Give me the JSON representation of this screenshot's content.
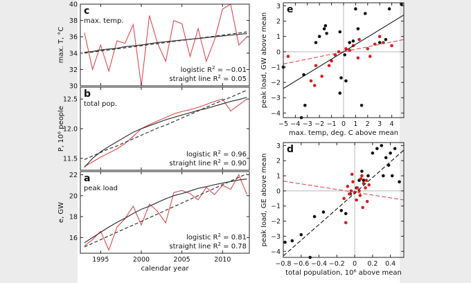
{
  "chart_data": [
    {
      "id": "c",
      "type": "line",
      "label": "c",
      "title": "max. temp.",
      "ylabel": "max. T, °C",
      "ylim": [
        30,
        40
      ],
      "yticks": [
        30,
        32,
        34,
        36,
        38,
        40
      ],
      "xlim": [
        1992.5,
        2013.3
      ],
      "xticks": [
        1995,
        2000,
        2005,
        2010
      ],
      "show_xticklabels": false,
      "x": [
        1993,
        1994,
        1995,
        1996,
        1997,
        1998,
        1999,
        2000,
        2001,
        2002,
        2003,
        2004,
        2005,
        2006,
        2007,
        2008,
        2009,
        2010,
        2011,
        2012,
        2013
      ],
      "series": [
        {
          "name": "observed",
          "color": "#e0474c",
          "style": "solid",
          "values": [
            36.5,
            32.0,
            35.0,
            31.8,
            35.5,
            35.2,
            37.5,
            30.0,
            38.6,
            35.2,
            33.0,
            38.0,
            37.6,
            33.6,
            37.0,
            33.0,
            35.6,
            39.4,
            40.0,
            35.0,
            36.0
          ]
        },
        {
          "name": "logistic",
          "color": "#333333",
          "style": "solid",
          "values": [
            34.1,
            34.2,
            34.4,
            34.5,
            34.6,
            34.8,
            34.9,
            35.0,
            35.15,
            35.3,
            35.4,
            35.5,
            35.6,
            35.7,
            35.8,
            35.9,
            36.0,
            36.1,
            36.2,
            36.3,
            36.4
          ]
        },
        {
          "name": "straight line",
          "color": "#333333",
          "style": "dashed",
          "values": [
            34.0,
            34.13,
            34.26,
            34.39,
            34.52,
            34.65,
            34.78,
            34.91,
            35.04,
            35.17,
            35.3,
            35.43,
            35.56,
            35.69,
            35.82,
            35.95,
            36.08,
            36.21,
            36.34,
            36.47,
            36.6
          ]
        }
      ],
      "stats": [
        {
          "model": "logistic",
          "r2": "−0.01"
        },
        {
          "model": "straight line",
          "r2": "0.05"
        }
      ]
    },
    {
      "id": "b",
      "type": "line",
      "label": "b",
      "title": "total pop.",
      "ylabel": "P, 10^6 people",
      "ylim": [
        11.3,
        12.7
      ],
      "yticks": [
        11.5,
        12.0,
        12.5
      ],
      "xlim": [
        1992.5,
        2013.3
      ],
      "xticks": [
        1995,
        2000,
        2005,
        2010
      ],
      "show_xticklabels": false,
      "x": [
        1993,
        1994,
        1995,
        1996,
        1997,
        1998,
        1999,
        2000,
        2001,
        2002,
        2003,
        2004,
        2005,
        2006,
        2007,
        2008,
        2009,
        2010,
        2011,
        2012,
        2013
      ],
      "series": [
        {
          "name": "observed",
          "color": "#e0474c",
          "style": "solid",
          "values": [
            11.36,
            11.44,
            11.52,
            11.59,
            11.66,
            11.75,
            11.87,
            12.0,
            12.07,
            12.13,
            12.19,
            12.25,
            12.29,
            12.32,
            12.36,
            12.41,
            12.46,
            12.5,
            12.3,
            12.4,
            12.5
          ]
        },
        {
          "name": "logistic",
          "color": "#333333",
          "style": "solid",
          "values": [
            11.35,
            11.5,
            11.61,
            11.7,
            11.78,
            11.86,
            11.94,
            12.0,
            12.05,
            12.1,
            12.15,
            12.19,
            12.23,
            12.27,
            12.31,
            12.34,
            12.38,
            12.42,
            12.46,
            12.49,
            12.53
          ]
        },
        {
          "name": "straight line",
          "color": "#333333",
          "style": "dashed",
          "values": [
            11.48,
            11.54,
            11.6,
            11.66,
            11.71,
            11.77,
            11.83,
            11.89,
            11.95,
            12.01,
            12.06,
            12.12,
            12.18,
            12.24,
            12.3,
            12.36,
            12.42,
            12.48,
            12.53,
            12.59,
            12.65
          ]
        }
      ],
      "stats": [
        {
          "model": "logistic",
          "r2": "0.96"
        },
        {
          "model": "straight line",
          "r2": "0.90"
        }
      ]
    },
    {
      "id": "a",
      "type": "line",
      "label": "a",
      "title": "peak load",
      "ylabel": "e, GW",
      "ylim": [
        14.5,
        22.3
      ],
      "yticks": [
        16,
        18,
        20,
        22
      ],
      "xlim": [
        1992.5,
        2013.3
      ],
      "xticks": [
        1995,
        2000,
        2005,
        2010
      ],
      "show_xticklabels": true,
      "xlabel": "calendar year",
      "x": [
        1993,
        1994,
        1995,
        1996,
        1997,
        1998,
        1999,
        2000,
        2001,
        2002,
        2003,
        2004,
        2005,
        2006,
        2007,
        2008,
        2009,
        2010,
        2011,
        2012,
        2013
      ],
      "series": [
        {
          "name": "observed",
          "color": "#e0474c",
          "style": "solid",
          "values": [
            15.2,
            15.8,
            16.6,
            14.8,
            17.0,
            17.8,
            19.0,
            17.2,
            19.2,
            18.5,
            17.4,
            20.3,
            20.5,
            20.2,
            19.6,
            20.8,
            20.1,
            21.0,
            20.6,
            22.0,
            20.1
          ]
        },
        {
          "name": "logistic",
          "color": "#333333",
          "style": "solid",
          "values": [
            15.5,
            16.0,
            16.5,
            17.0,
            17.45,
            17.85,
            18.3,
            18.7,
            19.0,
            19.35,
            19.7,
            20.0,
            20.2,
            20.45,
            20.7,
            20.85,
            21.05,
            21.2,
            21.35,
            21.5,
            21.6
          ]
        },
        {
          "name": "straight line",
          "color": "#333333",
          "style": "dashed",
          "values": [
            15.1,
            15.45,
            15.8,
            16.15,
            16.5,
            16.85,
            17.2,
            17.55,
            17.9,
            18.25,
            18.6,
            18.95,
            19.3,
            19.65,
            20.0,
            20.35,
            20.7,
            21.05,
            21.4,
            21.75,
            22.1
          ]
        }
      ],
      "stats": [
        {
          "model": "logistic",
          "r2": "0.81"
        },
        {
          "model": "straight line",
          "r2": "0.78"
        }
      ]
    },
    {
      "id": "e",
      "type": "scatter",
      "label": "e",
      "xlabel": "max. temp, deg. C above mean",
      "ylabel": "peak load, GW above mean",
      "xlim": [
        -5,
        5
      ],
      "ylim": [
        -4.3,
        3.2
      ],
      "xticks": [
        -5,
        -4,
        -3,
        -2,
        -1,
        0,
        1,
        2,
        3,
        4
      ],
      "yticks": [
        -4,
        -3,
        -2,
        -1,
        0,
        1,
        2,
        3
      ],
      "series": [
        {
          "name": "black points",
          "color": "#111111",
          "points": [
            [
              -5,
              -1.0
            ],
            [
              -3.5,
              -4.3
            ],
            [
              -3.2,
              -3.5
            ],
            [
              -3.3,
              -1.5
            ],
            [
              -2.3,
              0.6
            ],
            [
              -2.0,
              1.0
            ],
            [
              -1.6,
              1.5
            ],
            [
              -1.5,
              1.7
            ],
            [
              -1.4,
              1.2
            ],
            [
              -0.3,
              1.3
            ],
            [
              -0.2,
              -1.7
            ],
            [
              -0.3,
              -2.7
            ],
            [
              0.2,
              -1.9
            ],
            [
              0.5,
              0.6
            ],
            [
              0.8,
              0.7
            ],
            [
              1.0,
              2.8
            ],
            [
              1.2,
              1.5
            ],
            [
              1.5,
              -3.5
            ],
            [
              1.8,
              2.5
            ],
            [
              3.0,
              0.6
            ],
            [
              3.5,
              0.8
            ],
            [
              3.8,
              2.8
            ],
            [
              4.8,
              3.1
            ],
            [
              0.1,
              -0.2
            ]
          ]
        },
        {
          "name": "red points",
          "color": "#d42020",
          "points": [
            [
              -4.6,
              -0.3
            ],
            [
              -2.7,
              -1.9
            ],
            [
              -2.4,
              -2.2
            ],
            [
              -2.3,
              -0.9
            ],
            [
              -1.8,
              -1.6
            ],
            [
              -1.2,
              -0.9
            ],
            [
              -1.0,
              -0.6
            ],
            [
              -0.7,
              -0.2
            ],
            [
              -0.4,
              0.0
            ],
            [
              0.2,
              0.2
            ],
            [
              0.5,
              0.1
            ],
            [
              0.8,
              0.4
            ],
            [
              1.2,
              -0.4
            ],
            [
              1.3,
              0.8
            ],
            [
              2.0,
              0.2
            ],
            [
              2.2,
              -0.3
            ],
            [
              2.6,
              0.5
            ],
            [
              3.0,
              1.0
            ],
            [
              3.3,
              0.6
            ],
            [
              4.0,
              0.4
            ]
          ]
        },
        {
          "name": "black fit",
          "color": "#111111",
          "style": "solid",
          "line": [
            [
              -5,
              -2.4
            ],
            [
              5,
              2.4
            ]
          ]
        },
        {
          "name": "red fit",
          "color": "#e0474c",
          "style": "dashed",
          "line": [
            [
              -5,
              -0.8
            ],
            [
              5,
              0.8
            ]
          ]
        }
      ]
    },
    {
      "id": "d",
      "type": "scatter",
      "label": "d",
      "xlabel": "total population, 10^6 above mean",
      "ylabel": "peak load, GE above mean",
      "xlim": [
        -0.8,
        0.55
      ],
      "ylim": [
        -4.4,
        3.2
      ],
      "xticks": [
        -0.8,
        -0.6,
        -0.4,
        -0.2,
        0,
        0.2,
        0.4
      ],
      "yticks": [
        -4,
        -3,
        -2,
        -1,
        0,
        1,
        2,
        3
      ],
      "series": [
        {
          "name": "black points",
          "color": "#111111",
          "points": [
            [
              -0.78,
              -3.4
            ],
            [
              -0.7,
              -3.3
            ],
            [
              -0.6,
              -2.9
            ],
            [
              -0.5,
              -4.4
            ],
            [
              -0.45,
              -1.7
            ],
            [
              -0.35,
              -1.4
            ],
            [
              -0.15,
              -1.3
            ],
            [
              -0.1,
              -1.5
            ],
            [
              -0.05,
              -0.2
            ],
            [
              0.02,
              0.2
            ],
            [
              0.05,
              0.7
            ],
            [
              0.08,
              1.3
            ],
            [
              0.1,
              0.7
            ],
            [
              0.15,
              1.0
            ],
            [
              0.2,
              2.5
            ],
            [
              0.25,
              2.8
            ],
            [
              0.3,
              3.0
            ],
            [
              0.32,
              1.0
            ],
            [
              0.35,
              2.2
            ],
            [
              0.38,
              1.7
            ],
            [
              0.4,
              2.5
            ],
            [
              0.42,
              1.0
            ],
            [
              0.45,
              2.8
            ],
            [
              0.5,
              0.6
            ]
          ]
        },
        {
          "name": "red points",
          "color": "#d42020",
          "points": [
            [
              -0.12,
              -0.5
            ],
            [
              -0.1,
              -2.1
            ],
            [
              -0.08,
              0.3
            ],
            [
              -0.06,
              -0.2
            ],
            [
              -0.04,
              0.0
            ],
            [
              -0.03,
              1.1
            ],
            [
              -0.02,
              0.6
            ],
            [
              0.0,
              -0.1
            ],
            [
              0.02,
              -0.6
            ],
            [
              0.03,
              0.2
            ],
            [
              0.05,
              0.0
            ],
            [
              0.06,
              -0.3
            ],
            [
              0.07,
              0.8
            ],
            [
              0.08,
              1.0
            ],
            [
              0.09,
              -1.1
            ],
            [
              0.1,
              0.5
            ],
            [
              0.12,
              0.2
            ],
            [
              0.13,
              0.7
            ],
            [
              0.14,
              -0.7
            ],
            [
              0.16,
              0.4
            ]
          ]
        },
        {
          "name": "black fit",
          "color": "#111111",
          "style": "dashed",
          "line": [
            [
              -0.8,
              -4.3
            ],
            [
              0.55,
              2.7
            ]
          ]
        },
        {
          "name": "red fit",
          "color": "#e0474c",
          "style": "dashed",
          "line": [
            [
              -0.8,
              0.65
            ],
            [
              0.55,
              -0.6
            ]
          ]
        }
      ]
    }
  ]
}
